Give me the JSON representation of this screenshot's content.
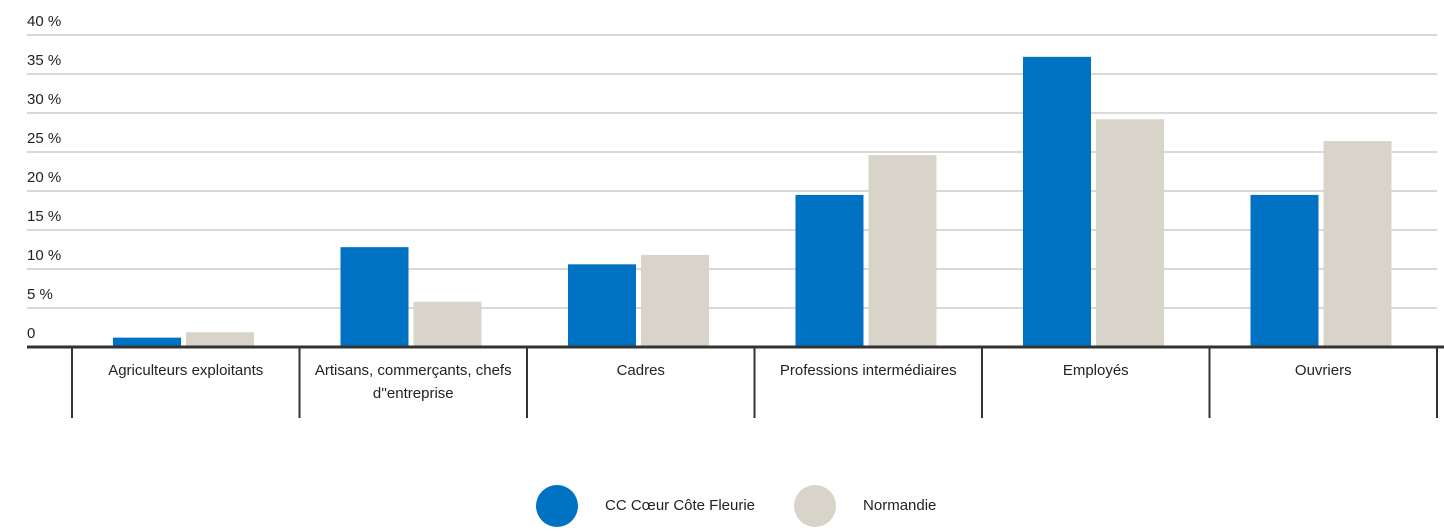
{
  "chart_data": {
    "type": "bar",
    "categories": [
      "Agriculteurs exploitants",
      "Artisans, commerçants, chefs d''entreprise",
      "Cadres",
      "Professions intermédiaires",
      "Employés",
      "Ouvriers"
    ],
    "series": [
      {
        "name": "CC Cœur Côte Fleurie",
        "color": "#0072c3",
        "values": [
          1.2,
          12.8,
          10.6,
          19.5,
          37.2,
          19.5
        ]
      },
      {
        "name": "Normandie",
        "color": "#d9d4c9",
        "values": [
          1.9,
          5.8,
          11.8,
          24.6,
          29.2,
          26.4
        ]
      }
    ],
    "ylim": [
      0,
      40
    ],
    "yticks": [
      0,
      {
        "value": 5,
        "label": "5 %"
      },
      {
        "value": 10,
        "label": "10 %"
      },
      {
        "value": 15,
        "label": "15 %"
      },
      {
        "value": 20,
        "label": "20 %"
      },
      {
        "value": 25,
        "label": "25 %"
      },
      {
        "value": 30,
        "label": "30 %"
      },
      {
        "value": 35,
        "label": "35 %"
      },
      {
        "value": 40,
        "label": "40 %"
      }
    ],
    "grid": true,
    "legend": "bottom"
  }
}
